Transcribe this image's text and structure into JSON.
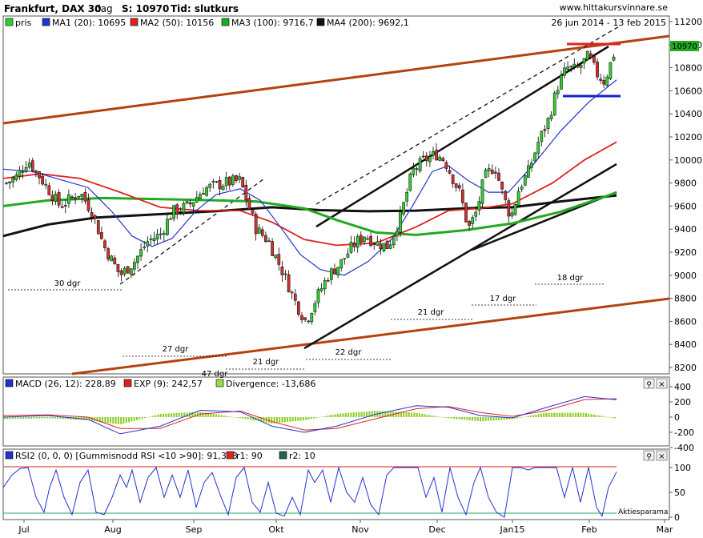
{
  "header": {
    "instrument": "Frankfurt, DAX 30",
    "period": "dag",
    "last": "S: 10970",
    "time": "Tid: slutkurs",
    "source": "www.hittakursvinnare.se",
    "date_range": "26 jun 2014 - 13 feb 2015"
  },
  "legend": {
    "price": "pris",
    "ma1": "MA1 (20): 10695",
    "ma2": "MA2 (50): 10156",
    "ma3": "MA3 (100): 9716,7",
    "ma4": "MA4 (200): 9692,1"
  },
  "colors": {
    "up": "#33cc33",
    "down": "#cc3333",
    "ma1": "#2233cc",
    "ma2": "#dd2222",
    "ma3": "#22aa22",
    "ma4": "#111111",
    "channel": "#b5420e",
    "support": "#1122cc",
    "resistance": "#dd2222",
    "badge": "#22aa22"
  },
  "macd_legend": {
    "macd": "MACD (26, 12): 228,89",
    "exp": "EXP (9): 242,57",
    "div": "Divergence: -13,686"
  },
  "rsi_legend": {
    "rsi": "RSI2 (0, 0, 0) [Gummisnodd RSI <10 >90]: 91,353",
    "r1": "r1: 90",
    "r2": "r2: 10"
  },
  "watermark": "Aktiesparama",
  "price_badge": "10970",
  "annotations": {
    "d30": "30 dgr",
    "d27": "27 dgr",
    "d47": "47 dgr",
    "d21a": "21 dgr",
    "d22": "22 dgr",
    "d21b": "21 dgr",
    "d17": "17 dgr",
    "d18": "18 dgr"
  },
  "chart_data": {
    "type": "candlestick",
    "price_axis": {
      "ticks": [
        8200,
        8400,
        8600,
        8800,
        9000,
        9200,
        9400,
        9600,
        9800,
        10000,
        10200,
        10400,
        10600,
        10800,
        11000,
        11200
      ],
      "range": [
        8150,
        11230
      ]
    },
    "macd_axis": {
      "ticks": [
        -400,
        -200,
        0,
        200,
        400
      ]
    },
    "rsi_axis": {
      "ticks": [
        0,
        50,
        100
      ]
    },
    "x_ticks": [
      "Jul",
      "Aug",
      "Sep",
      "Okt",
      "Nov",
      "Dec",
      "Jan15",
      "Feb",
      "Mar"
    ],
    "horizontal_levels": {
      "support": 10540,
      "resistance": 10990
    },
    "ma_values": {
      "ma1": 10695,
      "ma2": 10156,
      "ma3": 9716.7,
      "ma4": 9692.1
    },
    "macd_values": {
      "macd": 228.89,
      "exp": 242.57,
      "divergence": -13.686
    },
    "rsi_values": {
      "rsi": 91.353,
      "r1": 90,
      "r2": 10
    }
  }
}
